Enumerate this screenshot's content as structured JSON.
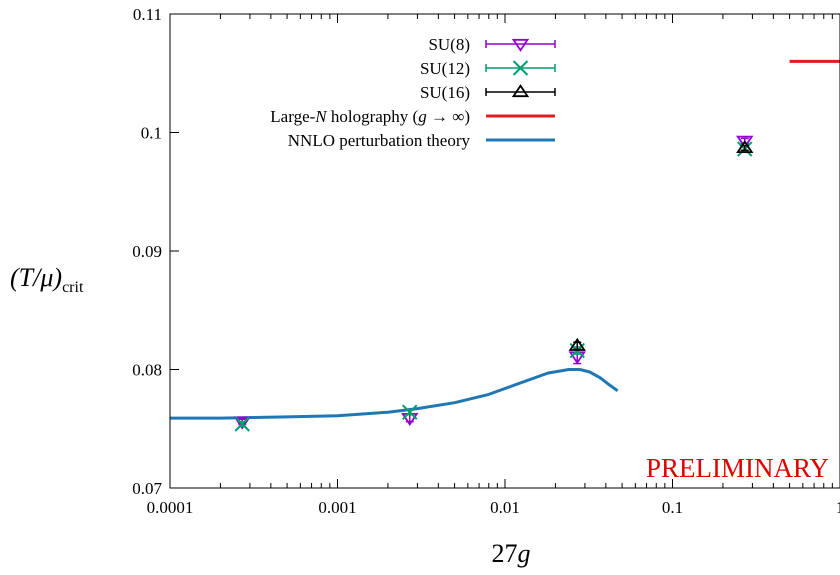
{
  "chart_data": {
    "type": "scatter",
    "title": "",
    "xlabel": "27g",
    "ylabel_main": "(T/μ)",
    "ylabel_sub": "crit",
    "xscale": "log",
    "xlim": [
      0.0001,
      1
    ],
    "ylim": [
      0.07,
      0.11
    ],
    "x_ticks": [
      0.0001,
      0.001,
      0.01,
      0.1,
      1
    ],
    "x_tick_labels": [
      "0.0001",
      "0.001",
      "0.01",
      "0.1",
      "1"
    ],
    "y_ticks": [
      0.07,
      0.08,
      0.09,
      0.1,
      0.11
    ],
    "y_tick_labels": [
      "0.07",
      "0.08",
      "0.09",
      "0.1",
      "0.11"
    ],
    "grid": false,
    "legend_position": "top-center",
    "annotation": "PRELIMINARY",
    "series": [
      {
        "name": "SU(8)",
        "marker": "triangle-down",
        "color": "#9400d3",
        "points": [
          {
            "x": 0.00027,
            "y": 0.0756,
            "err": 0.0002
          },
          {
            "x": 0.0027,
            "y": 0.0759,
            "err": 0.0003
          },
          {
            "x": 0.027,
            "y": 0.0811,
            "err": 0.0006
          },
          {
            "x": 0.27,
            "y": 0.0993,
            "err": 0.0002
          }
        ]
      },
      {
        "name": "SU(12)",
        "marker": "x",
        "color": "#009e73",
        "points": [
          {
            "x": 0.00027,
            "y": 0.0754,
            "err": 0.0002
          },
          {
            "x": 0.0027,
            "y": 0.0764,
            "err": 0.0002
          },
          {
            "x": 0.027,
            "y": 0.0816,
            "err": 0.0003
          },
          {
            "x": 0.27,
            "y": 0.0986,
            "err": 0.0002
          }
        ]
      },
      {
        "name": "SU(16)",
        "marker": "triangle-up",
        "color": "#000000",
        "points": [
          {
            "x": 0.027,
            "y": 0.082,
            "err": 0.0003
          },
          {
            "x": 0.27,
            "y": 0.0987,
            "err": 0.0002
          }
        ]
      }
    ],
    "lines": [
      {
        "name": "Large-N holography (g → ∞)",
        "color": "#e41a1c",
        "type": "segment",
        "x": [
          0.5,
          1
        ],
        "y": [
          0.106,
          0.106
        ]
      },
      {
        "name": "NNLO perturbation theory",
        "color": "#1f77b4",
        "type": "curve",
        "x": [
          0.0001,
          0.0002,
          0.0005,
          0.001,
          0.002,
          0.003,
          0.005,
          0.008,
          0.012,
          0.018,
          0.024,
          0.028,
          0.032,
          0.037,
          0.042,
          0.047
        ],
        "y": [
          0.0759,
          0.0759,
          0.076,
          0.0761,
          0.0764,
          0.0767,
          0.0772,
          0.0779,
          0.0788,
          0.0797,
          0.08,
          0.08,
          0.0798,
          0.0793,
          0.0787,
          0.0782
        ]
      }
    ]
  }
}
